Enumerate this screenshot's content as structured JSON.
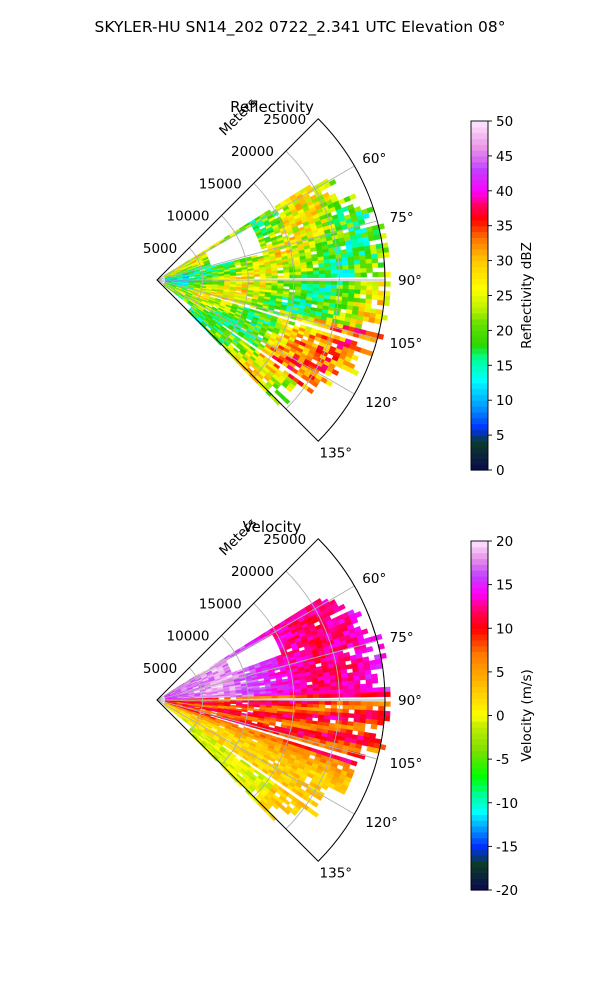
{
  "figure": {
    "title": "SKYLER-HU  SN14_202  0722_2.341 UTC Elevation 08°"
  },
  "chart_data": [
    {
      "type": "heatmap",
      "projection": "polar-sector",
      "title": "Reflectivity",
      "radial_label": "Meters",
      "r_ticks": [
        5000,
        10000,
        15000,
        20000,
        25000
      ],
      "r_max": 25000,
      "theta_ticks": [
        60,
        75,
        90,
        105,
        120,
        135
      ],
      "theta_tick_labels": [
        "60°",
        "75°",
        "90°",
        "105°",
        "120°",
        "135°"
      ],
      "theta_range": [
        45,
        135
      ],
      "data_extent_r": [
        0,
        25000
      ],
      "colorbar": {
        "label": "Reflectivity dBZ",
        "min": 0,
        "max": 50,
        "ticks": [
          0,
          5,
          10,
          15,
          20,
          25,
          30,
          35,
          40,
          45,
          50
        ],
        "stops": [
          {
            "v": 0,
            "c": "#0a0a50"
          },
          {
            "v": 4,
            "c": "#0c3b2a"
          },
          {
            "v": 6,
            "c": "#0030ff"
          },
          {
            "v": 9,
            "c": "#0096ff"
          },
          {
            "v": 13,
            "c": "#00ffff"
          },
          {
            "v": 16,
            "c": "#00ff90"
          },
          {
            "v": 18,
            "c": "#2bd800"
          },
          {
            "v": 21,
            "c": "#66e000"
          },
          {
            "v": 23,
            "c": "#b8f000"
          },
          {
            "v": 26,
            "c": "#ffff00"
          },
          {
            "v": 30,
            "c": "#ffc800"
          },
          {
            "v": 33,
            "c": "#ff7a00"
          },
          {
            "v": 36,
            "c": "#ff0000"
          },
          {
            "v": 38,
            "c": "#ff0060"
          },
          {
            "v": 40,
            "c": "#ff00ff"
          },
          {
            "v": 43,
            "c": "#c040ff"
          },
          {
            "v": 46,
            "c": "#e890e8"
          },
          {
            "v": 50,
            "c": "#ffe8ff"
          }
        ]
      }
    },
    {
      "type": "heatmap",
      "projection": "polar-sector",
      "title": "Velocity",
      "radial_label": "Meters",
      "r_ticks": [
        5000,
        10000,
        15000,
        20000,
        25000
      ],
      "r_max": 25000,
      "theta_ticks": [
        60,
        75,
        90,
        105,
        120,
        135
      ],
      "theta_tick_labels": [
        "60°",
        "75°",
        "90°",
        "105°",
        "120°",
        "135°"
      ],
      "theta_range": [
        45,
        135
      ],
      "data_extent_r": [
        0,
        25000
      ],
      "colorbar": {
        "label": "Velocity (m/s)",
        "min": -20,
        "max": 20,
        "ticks": [
          -20,
          -15,
          -10,
          -5,
          0,
          5,
          10,
          15,
          20
        ],
        "stops": [
          {
            "v": -20,
            "c": "#0a0a50"
          },
          {
            "v": -17,
            "c": "#0c3b2a"
          },
          {
            "v": -15,
            "c": "#0030ff"
          },
          {
            "v": -13,
            "c": "#0096ff"
          },
          {
            "v": -11,
            "c": "#00ffff"
          },
          {
            "v": -9,
            "c": "#00ff90"
          },
          {
            "v": -7,
            "c": "#00ff00"
          },
          {
            "v": -4,
            "c": "#7ae000"
          },
          {
            "v": -1,
            "c": "#c8f000"
          },
          {
            "v": 0,
            "c": "#ffff00"
          },
          {
            "v": 3,
            "c": "#ffc800"
          },
          {
            "v": 7,
            "c": "#ff7a00"
          },
          {
            "v": 10,
            "c": "#ff0000"
          },
          {
            "v": 12,
            "c": "#ff0060"
          },
          {
            "v": 14,
            "c": "#ff00ff"
          },
          {
            "v": 16,
            "c": "#c040ff"
          },
          {
            "v": 18,
            "c": "#e890e8"
          },
          {
            "v": 20,
            "c": "#ffe8ff"
          }
        ]
      }
    }
  ]
}
